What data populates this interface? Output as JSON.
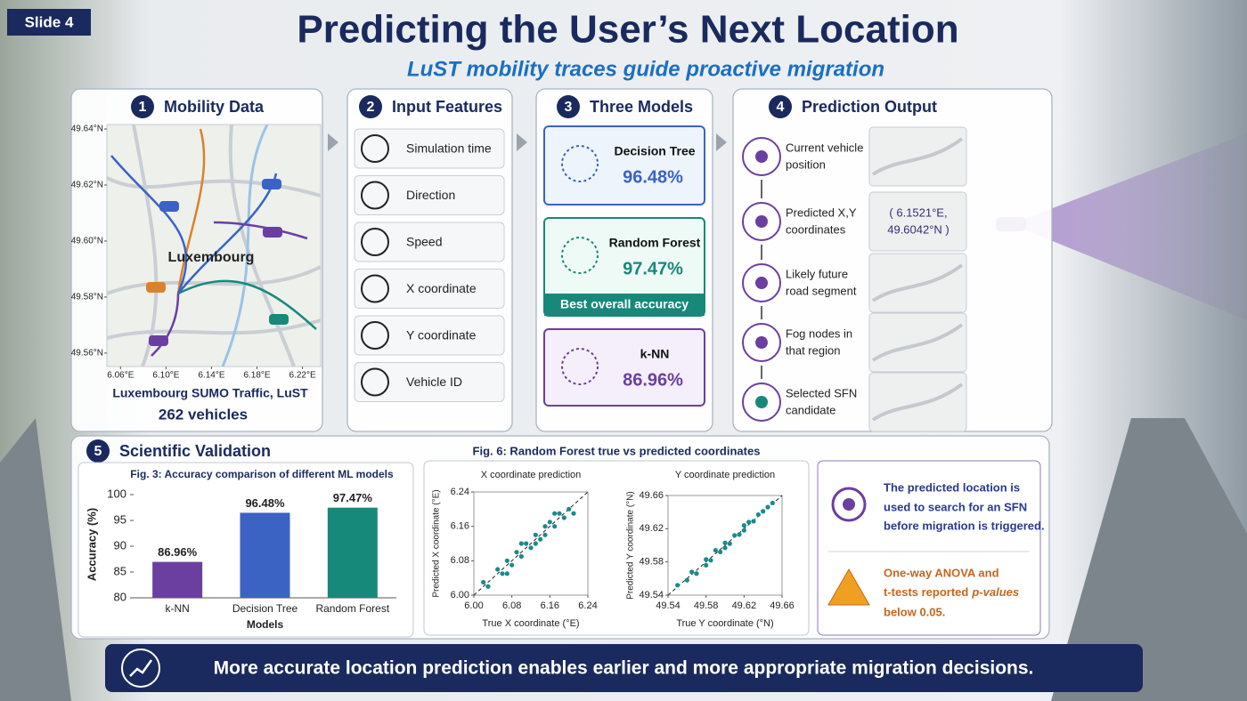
{
  "slide_label": "Slide 4",
  "title": "Predicting the User’s Next Location",
  "subtitle": "LuST mobility traces guide proactive migration",
  "mobility_data": {
    "number": "1",
    "heading": "Mobility Data",
    "map": {
      "city_label": "Luxembourg",
      "xlim": [
        6.048,
        6.236
      ],
      "xticks": [
        {
          "value": 6.06,
          "label": "6.06°E"
        },
        {
          "value": 6.1,
          "label": "6.10°E"
        },
        {
          "value": 6.14,
          "label": "6.14°E"
        },
        {
          "value": 6.18,
          "label": "6.18°E"
        },
        {
          "value": 6.22,
          "label": "6.22°E"
        }
      ],
      "ylim": [
        49.5552,
        49.6416
      ],
      "yticks": [
        {
          "value": 49.56,
          "label": "49.56°N"
        },
        {
          "value": 49.58,
          "label": "49.58°N"
        },
        {
          "value": 49.6,
          "label": "49.60°N"
        },
        {
          "value": 49.62,
          "label": "49.62°N"
        },
        {
          "value": 49.64,
          "label": "49.64°N"
        }
      ]
    },
    "caption": "Luxembourg SUMO Traffic, LuST",
    "vehicles": "262 vehicles"
  },
  "input_features": {
    "number": "2",
    "heading": "Input Features",
    "items": [
      "Simulation time",
      "Direction",
      "Speed",
      "X coordinate",
      "Y coordinate",
      "Vehicle ID"
    ]
  },
  "models": {
    "number": "3",
    "heading": "Three Models",
    "items": [
      {
        "name": "Decision Tree",
        "accuracy": "96.48%"
      },
      {
        "name": "Random Forest",
        "accuracy": "97.47%",
        "badge": "Best overall accuracy"
      },
      {
        "name": "k-NN",
        "accuracy": "86.96%"
      }
    ]
  },
  "prediction_output": {
    "number": "4",
    "heading": "Prediction Output",
    "steps": [
      {
        "lines": [
          "Current vehicle",
          "position"
        ]
      },
      {
        "lines": [
          "Predicted X,Y",
          "coordinates"
        ],
        "detail": [
          "( 6.1521°E,",
          "49.6042°N )"
        ]
      },
      {
        "lines": [
          "Likely future",
          "road segment"
        ]
      },
      {
        "lines": [
          "Fog nodes in",
          "that region"
        ]
      },
      {
        "lines": [
          "Selected SFN",
          "candidate"
        ]
      }
    ]
  },
  "validation": {
    "number": "5",
    "heading": "Scientific Validation",
    "accuracy_chart": {
      "type": "bar",
      "title": "Fig. 3: Accuracy comparison of different ML models",
      "x_label": "Models",
      "y_label": "Accuracy (%)",
      "categories": [
        "k-NN",
        "Decision Tree",
        "Random Forest"
      ],
      "values": [
        86.96,
        96.48,
        97.47
      ],
      "value_labels": [
        "86.96%",
        "96.48%",
        "97.47%"
      ],
      "colors": [
        "#6b3fa0",
        "#3a63c4",
        "#17897a"
      ],
      "ylim": [
        80,
        100
      ],
      "yticks": [
        80,
        85,
        90,
        95,
        100
      ]
    },
    "scatter_title": "Fig. 6: Random Forest true vs predicted coordinates",
    "scatter_charts": [
      {
        "type": "scatter",
        "title": "X coordinate prediction",
        "x_label": "True X coordinate  (°E)",
        "y_label": "Predicted X coordinate (°E)",
        "color": "#1a8a8a",
        "xlim": [
          6.0,
          6.24
        ],
        "xticks": [
          {
            "value": 6.0,
            "label": "6.00"
          },
          6.08,
          6.16,
          6.24
        ],
        "ylim": [
          6.0,
          6.24
        ],
        "yticks": [
          {
            "value": 6.0,
            "label": "6.00"
          },
          6.08,
          6.16,
          6.24
        ],
        "x": [
          6.02,
          6.03,
          6.05,
          6.06,
          6.07,
          6.08,
          6.09,
          6.1,
          6.11,
          6.12,
          6.13,
          6.13,
          6.14,
          6.15,
          6.15,
          6.16,
          6.17,
          6.18,
          6.19,
          6.2,
          6.21,
          6.1,
          6.07,
          6.17
        ],
        "y": [
          6.03,
          6.02,
          6.06,
          6.05,
          6.08,
          6.07,
          6.1,
          6.09,
          6.12,
          6.11,
          6.14,
          6.12,
          6.13,
          6.16,
          6.14,
          6.17,
          6.16,
          6.19,
          6.18,
          6.2,
          6.19,
          6.12,
          6.05,
          6.19
        ]
      },
      {
        "type": "scatter",
        "title": "Y coordinate prediction",
        "x_label": "True Y coordinate  (°N)",
        "y_label": "Predicted Y coordinate (°N)",
        "color": "#1a8a8a",
        "xlim": [
          49.54,
          49.66
        ],
        "xticks": [
          49.54,
          49.58,
          49.62,
          49.66
        ],
        "ylim": [
          49.54,
          49.66
        ],
        "yticks": [
          49.54,
          49.58,
          49.62,
          49.66
        ],
        "x": [
          49.55,
          49.56,
          49.565,
          49.57,
          49.58,
          49.585,
          49.59,
          49.595,
          49.6,
          49.605,
          49.61,
          49.615,
          49.62,
          49.625,
          49.63,
          49.635,
          49.64,
          49.645,
          49.65,
          49.6,
          49.58,
          49.62
        ],
        "y": [
          49.552,
          49.558,
          49.568,
          49.566,
          49.583,
          49.582,
          49.594,
          49.592,
          49.603,
          49.602,
          49.612,
          49.613,
          49.618,
          49.628,
          49.629,
          49.637,
          49.641,
          49.646,
          49.651,
          49.597,
          49.576,
          49.624
        ]
      }
    ],
    "notes": [
      {
        "lines": [
          "The predicted location is",
          "used to search for an SFN",
          "before migration is triggered."
        ]
      },
      {
        "lines": [
          "One-way ANOVA and",
          {
            "parts": [
              "t-tests reported",
              "p-values"
            ]
          },
          "below 0.05."
        ]
      }
    ]
  },
  "footer": "More accurate location prediction enables earlier and more appropriate migration decisions."
}
